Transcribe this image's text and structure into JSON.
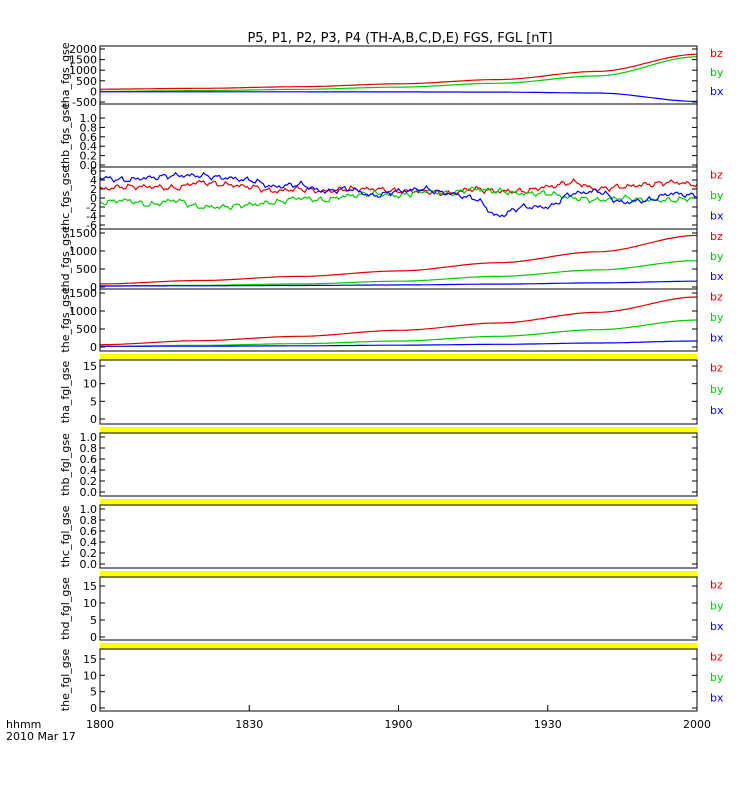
{
  "title": "P5, P1, P2, P3, P4 (TH-A,B,C,D,E) FGS, FGL [nT]",
  "time_axis": {
    "ticks": [
      "1800",
      "1830",
      "1900",
      "1930",
      "2000"
    ],
    "label_line1": "hhmm",
    "label_line2": "2010 Mar 17"
  },
  "colors": {
    "bx": "#0000ff",
    "by": "#00cc00",
    "bz": "#e00000",
    "bar": "#ffff00",
    "frame": "#000000"
  },
  "legend_labels": [
    "bz",
    "by",
    "bx"
  ],
  "chart_data": [
    {
      "type": "line",
      "ylabel": "tha_fgs_gse",
      "ytick_labels": [
        "2000",
        "1500",
        "1000",
        "500",
        "0",
        "-500"
      ],
      "ylim": [
        -500,
        2100
      ],
      "legend": [
        "bz",
        "by",
        "bx"
      ],
      "x": [
        0,
        20,
        40,
        60,
        80,
        100,
        120
      ],
      "series": [
        {
          "name": "bz",
          "values": [
            130,
            170,
            250,
            390,
            600,
            1000,
            1840
          ]
        },
        {
          "name": "by",
          "values": [
            20,
            60,
            120,
            230,
            420,
            780,
            1720
          ]
        },
        {
          "name": "bx",
          "values": [
            0,
            0,
            -2,
            -6,
            -15,
            -60,
            -470
          ]
        }
      ]
    },
    {
      "type": "line",
      "ylabel": "thb_fgs_gse",
      "ytick_labels": [
        "1.0",
        "0.8",
        "0.6",
        "0.4",
        "0.2",
        "0.0"
      ],
      "ylim": [
        0,
        1
      ],
      "legend": [],
      "series": []
    },
    {
      "type": "line",
      "ylabel": "thc_fgs_gse",
      "ytick_labels": [
        "6",
        "4",
        "2",
        "0",
        "-2",
        "-4",
        "-6"
      ],
      "ylim": [
        -6,
        6
      ],
      "legend": [
        "bz",
        "by",
        "bx"
      ],
      "x": [
        0,
        5,
        10,
        15,
        20,
        25,
        30,
        35,
        40,
        45,
        50,
        55,
        60,
        65,
        70,
        75,
        80,
        85,
        90,
        95,
        100,
        105,
        110,
        115,
        120
      ],
      "series": [
        {
          "name": "bz",
          "values": [
            2,
            2.5,
            2.5,
            2.2,
            3.5,
            3,
            2.5,
            1.5,
            2,
            1.5,
            2,
            2,
            1.5,
            1.5,
            1,
            2,
            1.5,
            1.5,
            2.5,
            3.5,
            2,
            2.5,
            3,
            3.5,
            3
          ]
        },
        {
          "name": "by",
          "values": [
            -1,
            -0.5,
            -1.5,
            -0.5,
            -2,
            -2,
            -1.5,
            -1,
            0,
            -0.5,
            0.5,
            1,
            0.5,
            1.5,
            1,
            2,
            1.5,
            1,
            1,
            0,
            -0.5,
            0,
            -0.5,
            -0.5,
            0
          ]
        },
        {
          "name": "bx",
          "values": [
            4.5,
            4,
            4.5,
            5,
            5,
            4.5,
            4,
            2.5,
            3,
            1.5,
            2,
            0.5,
            1.5,
            2,
            1,
            0,
            -4,
            -2,
            -2,
            1,
            1.5,
            -1,
            -0.5,
            1,
            0.5
          ]
        }
      ]
    },
    {
      "type": "line",
      "ylabel": "thd_fgs_gse",
      "ytick_labels": [
        "1500",
        "1000",
        "500",
        "0"
      ],
      "ylim": [
        -30,
        1550
      ],
      "legend": [
        "bz",
        "by",
        "bx"
      ],
      "x": [
        0,
        20,
        40,
        60,
        80,
        100,
        120
      ],
      "series": [
        {
          "name": "bz",
          "values": [
            60,
            160,
            280,
            440,
            680,
            1000,
            1480
          ]
        },
        {
          "name": "by",
          "values": [
            0,
            20,
            60,
            140,
            280,
            470,
            740
          ]
        },
        {
          "name": "bx",
          "values": [
            0,
            5,
            15,
            30,
            55,
            90,
            140
          ]
        }
      ]
    },
    {
      "type": "line",
      "ylabel": "the_fgs_gse",
      "ytick_labels": [
        "1500",
        "1000",
        "500",
        "0"
      ],
      "ylim": [
        -70,
        1550
      ],
      "legend": [
        "bz",
        "by",
        "bx"
      ],
      "x": [
        0,
        20,
        40,
        60,
        80,
        100,
        120
      ],
      "series": [
        {
          "name": "bz",
          "values": [
            0,
            120,
            250,
            430,
            650,
            970,
            1430
          ]
        },
        {
          "name": "by",
          "values": [
            -50,
            -20,
            30,
            110,
            250,
            450,
            740
          ]
        },
        {
          "name": "bx",
          "values": [
            -50,
            -45,
            -35,
            -15,
            10,
            50,
            110
          ]
        }
      ]
    },
    {
      "type": "line",
      "ylabel": "tha_fgl_gse",
      "ytick_labels": [
        "15",
        "10",
        "5",
        "0"
      ],
      "ylim": [
        -3,
        17
      ],
      "legend": [
        "bz",
        "by",
        "bx"
      ],
      "series": []
    },
    {
      "type": "line",
      "ylabel": "thb_fgl_gse",
      "ytick_labels": [
        "1.0",
        "0.8",
        "0.6",
        "0.4",
        "0.2",
        "0.0"
      ],
      "ylim": [
        -0.06,
        1.04
      ],
      "legend": [],
      "series": []
    },
    {
      "type": "line",
      "ylabel": "thc_fgl_gse",
      "ytick_labels": [
        "1.0",
        "0.8",
        "0.6",
        "0.4",
        "0.2",
        "0.0"
      ],
      "ylim": [
        -0.06,
        1.04
      ],
      "legend": [],
      "series": []
    },
    {
      "type": "line",
      "ylabel": "thd_fgl_gse",
      "ytick_labels": [
        "15",
        "10",
        "5",
        "0"
      ],
      "ylim": [
        -3,
        17
      ],
      "legend": [
        "bz",
        "by",
        "bx"
      ],
      "series": []
    },
    {
      "type": "line",
      "ylabel": "the_fgl_gse",
      "ytick_labels": [
        "15",
        "10",
        "5",
        "0"
      ],
      "ylim": [
        -3,
        17
      ],
      "legend": [
        "bz",
        "by",
        "bx"
      ],
      "series": []
    }
  ]
}
